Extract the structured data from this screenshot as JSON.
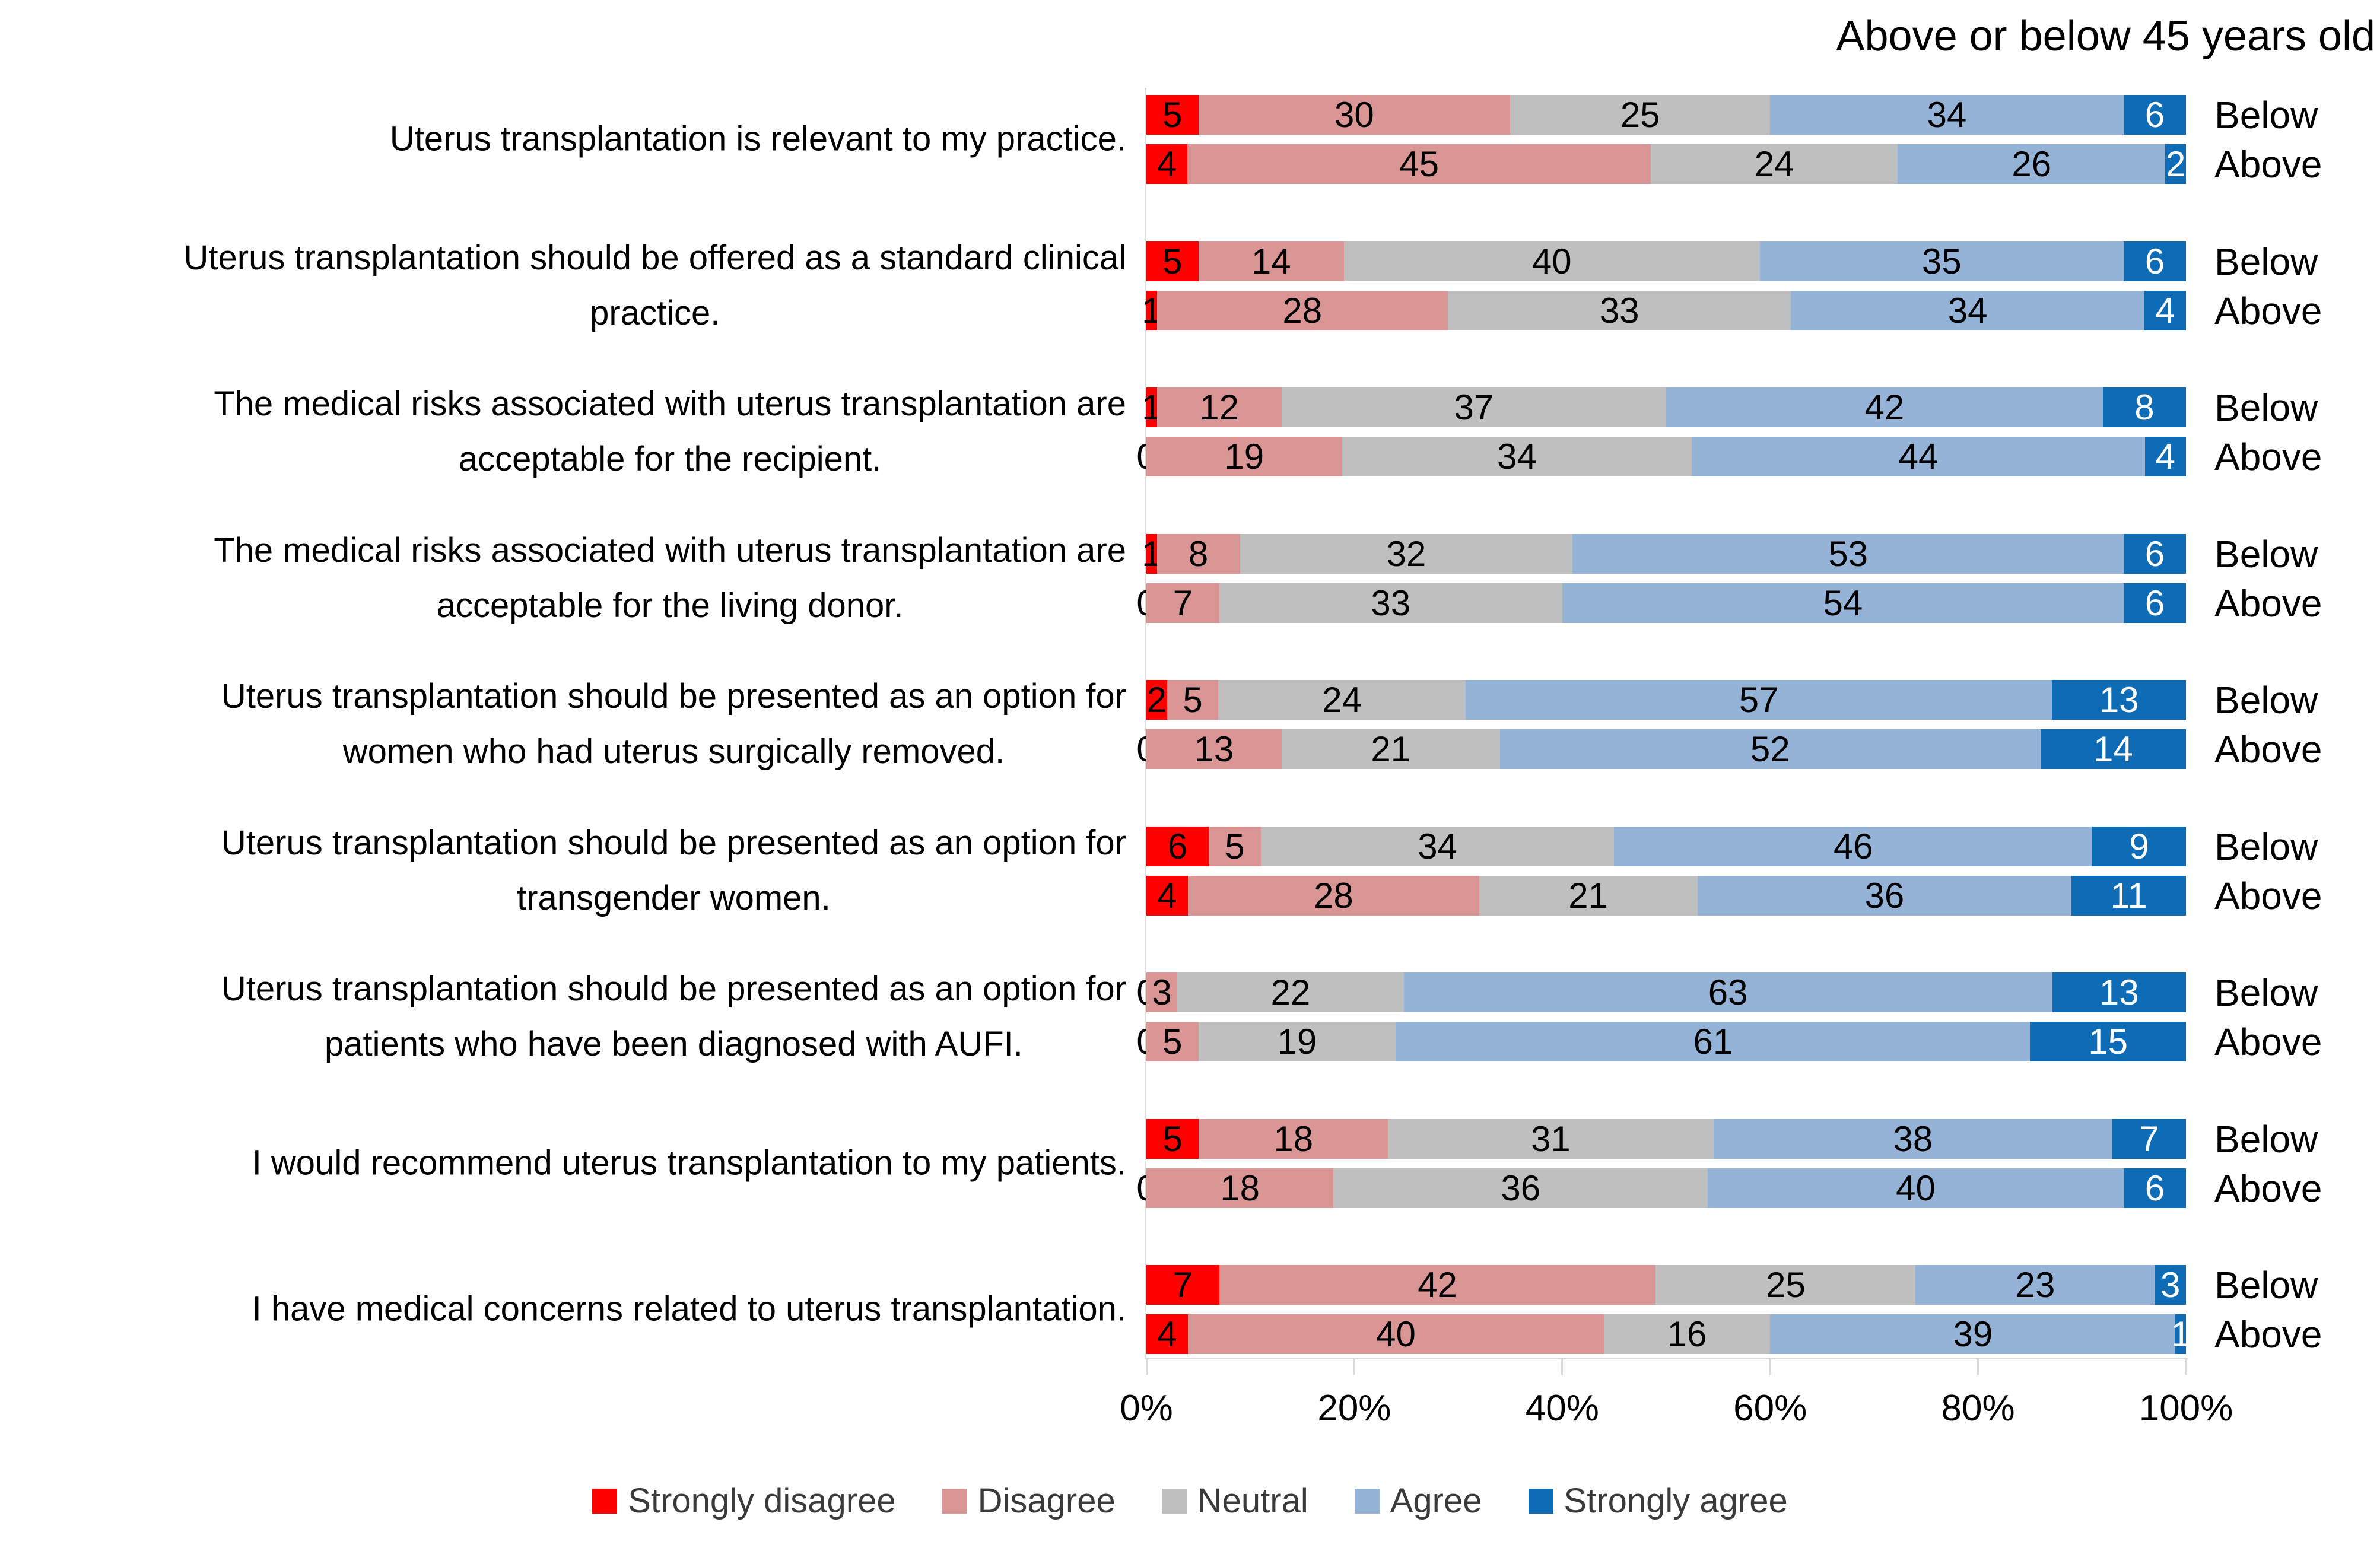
{
  "chart_data": {
    "type": "bar",
    "stacked": true,
    "orientation": "horizontal",
    "title": "Above or below 45 years old",
    "x_range": [
      0,
      100
    ],
    "x_ticks": [
      "0%",
      "20%",
      "40%",
      "60%",
      "80%",
      "100%"
    ],
    "grid": false,
    "legend_position": "bottom",
    "series_names": [
      "Strongly disagree",
      "Disagree",
      "Neutral",
      "Agree",
      "Strongly agree"
    ],
    "series_colors": [
      "#FF0000",
      "#D99694",
      "#BFBFBF",
      "#95B3D7",
      "#0E6CB6"
    ],
    "pair_labels": [
      "Below",
      "Above"
    ],
    "questions": [
      {
        "label": "Uterus transplantation is relevant to my practice.",
        "below": [
          5,
          30,
          25,
          34,
          6
        ],
        "above": [
          4,
          45,
          24,
          26,
          2
        ]
      },
      {
        "label": "Uterus transplantation should be offered as a standard clinical\npractice.",
        "below": [
          5,
          14,
          40,
          35,
          6
        ],
        "above": [
          1,
          28,
          33,
          34,
          4
        ]
      },
      {
        "label": "The medical risks associated with uterus transplantation are\nacceptable for the recipient.",
        "below": [
          1,
          12,
          37,
          42,
          8
        ],
        "above": [
          0,
          19,
          34,
          44,
          4
        ]
      },
      {
        "label": "The medical risks associated with uterus transplantation are\nacceptable for the living donor.",
        "below": [
          1,
          8,
          32,
          53,
          6
        ],
        "above": [
          0,
          7,
          33,
          54,
          6
        ]
      },
      {
        "label": "Uterus transplantation should be presented as an option for\nwomen who had uterus surgically removed.",
        "below": [
          2,
          5,
          24,
          57,
          13
        ],
        "above": [
          0,
          13,
          21,
          52,
          14
        ]
      },
      {
        "label": "Uterus transplantation should be presented as an option for\ntransgender women.",
        "below": [
          6,
          5,
          34,
          46,
          9
        ],
        "above": [
          4,
          28,
          21,
          36,
          11
        ]
      },
      {
        "label": "Uterus transplantation should be presented as an option for\npatients who have been diagnosed with AUFI.",
        "below": [
          0,
          3,
          22,
          63,
          13
        ],
        "above": [
          0,
          5,
          19,
          61,
          15
        ]
      },
      {
        "label": "I would recommend uterus transplantation to my patients.",
        "below": [
          5,
          18,
          31,
          38,
          7
        ],
        "above": [
          0,
          18,
          36,
          40,
          6
        ]
      },
      {
        "label": "I have medical concerns related to uterus transplantation.",
        "below": [
          7,
          42,
          25,
          23,
          3
        ],
        "above": [
          4,
          40,
          16,
          39,
          1
        ]
      }
    ]
  }
}
